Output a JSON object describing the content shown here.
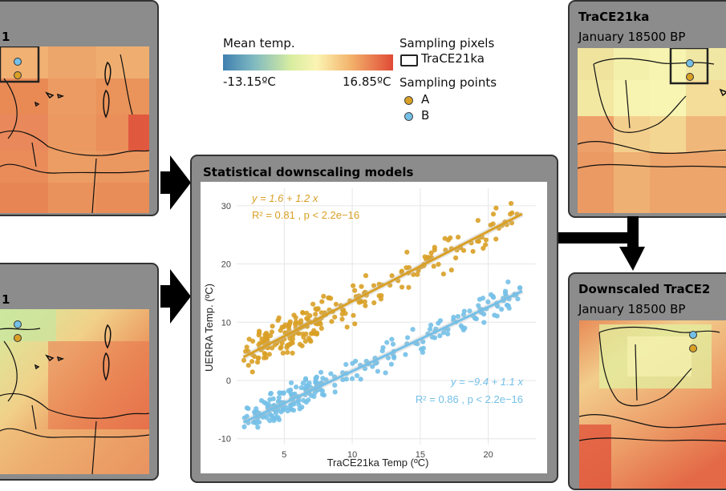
{
  "legend": {
    "colorbar_title": "Mean temp.",
    "min_label": "-13.15ºC",
    "max_label": "16.85ºC",
    "pixels_title": "Sampling pixels",
    "pixels_item": "TraCE21ka",
    "points_title": "Sampling points",
    "point_a": "A",
    "point_b": "B",
    "color_a": "#d9a026",
    "color_b": "#74c0e8"
  },
  "panels": {
    "trace_top_left": {
      "title": "1"
    },
    "uerra_bottom_left": {
      "title": "1"
    },
    "trace_top_right": {
      "title": "TraCE21ka",
      "subtitle": "January 18500 BP"
    },
    "downscaled": {
      "title": "Downscaled TraCE2",
      "subtitle": "January 18500 BP"
    },
    "models": {
      "title": "Statistical downscaling models"
    }
  },
  "chart_data": {
    "type": "scatter",
    "xlabel": "TraCE21ka Temp (ºC)",
    "ylabel": "UERRA Temp. (ºC)",
    "xlim": [
      1.5,
      23.5
    ],
    "ylim": [
      -11,
      33
    ],
    "xticks": [
      5,
      10,
      15,
      20
    ],
    "yticks": [
      -10,
      0,
      10,
      20,
      30
    ],
    "grid": true,
    "series": [
      {
        "name": "A",
        "color": "#d9a026",
        "intercept": 1.6,
        "slope": 1.2,
        "x_range": [
          2,
          22.5
        ],
        "equation": "y = 1.6 + 1.2 x",
        "r2": "R² = 0.81 , p < 2.2e−16"
      },
      {
        "name": "B",
        "color": "#74c0e8",
        "intercept": -9.4,
        "slope": 1.1,
        "x_range": [
          2,
          22.5
        ],
        "equation": "y = −9.4 + 1.1 x",
        "r2": "R² = 0.86 , p < 2.2e−16"
      }
    ]
  }
}
